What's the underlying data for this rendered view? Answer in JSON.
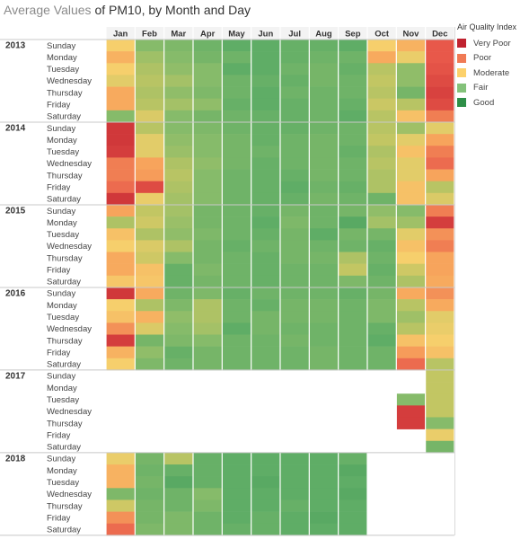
{
  "title": {
    "prefix": "Average Values",
    "suffix": " of PM10, by Month and Day"
  },
  "legend": {
    "title": "Air Quality Index",
    "items": [
      {
        "label": "Very Poor",
        "color": "#c0222f"
      },
      {
        "label": "Poor",
        "color": "#f07a55"
      },
      {
        "label": "Moderate",
        "color": "#fcd16b"
      },
      {
        "label": "Fair",
        "color": "#84c27a"
      },
      {
        "label": "Good",
        "color": "#2e8f48"
      }
    ]
  },
  "chart_data": {
    "type": "heatmap",
    "title": "Average Values of PM10, by Month and Day",
    "columns": [
      "Jan",
      "Feb",
      "Mar",
      "Apr",
      "May",
      "Jun",
      "Jul",
      "Aug",
      "Sep",
      "Oct",
      "Nov",
      "Dec"
    ],
    "row_labels": [
      "Sunday",
      "Monday",
      "Tuesday",
      "Wednesday",
      "Thursday",
      "Friday",
      "Saturday"
    ],
    "color_scale": {
      "categories": [
        "Very Poor",
        "Poor",
        "Moderate",
        "Fair",
        "Good"
      ],
      "stops": [
        [
          0,
          "#c0222f"
        ],
        [
          0.2,
          "#e8584a"
        ],
        [
          0.4,
          "#f7a45c"
        ],
        [
          0.55,
          "#f6cf6c"
        ],
        [
          0.68,
          "#c2c663"
        ],
        [
          0.8,
          "#86bb6a"
        ],
        [
          0.9,
          "#5fad66"
        ],
        [
          1,
          "#3f9a58"
        ]
      ]
    },
    "cell_value": "Air Quality Index level, 0 = Very Poor … 1 = Good",
    "groups": [
      {
        "year": "2013",
        "rows": [
          [
            0.55,
            0.8,
            0.82,
            0.86,
            0.9,
            0.9,
            0.88,
            0.88,
            0.9,
            0.55,
            0.45,
            0.2
          ],
          [
            0.45,
            0.75,
            0.8,
            0.84,
            0.86,
            0.9,
            0.88,
            0.86,
            0.86,
            0.42,
            0.58,
            0.2
          ],
          [
            0.55,
            0.72,
            0.78,
            0.8,
            0.9,
            0.9,
            0.86,
            0.84,
            0.88,
            0.7,
            0.78,
            0.18
          ],
          [
            0.6,
            0.7,
            0.74,
            0.8,
            0.86,
            0.88,
            0.88,
            0.84,
            0.86,
            0.68,
            0.78,
            0.15
          ],
          [
            0.42,
            0.72,
            0.78,
            0.82,
            0.86,
            0.9,
            0.86,
            0.86,
            0.86,
            0.7,
            0.84,
            0.12
          ],
          [
            0.42,
            0.7,
            0.74,
            0.78,
            0.88,
            0.9,
            0.88,
            0.86,
            0.88,
            0.66,
            0.7,
            0.15
          ],
          [
            0.8,
            0.62,
            0.8,
            0.84,
            0.86,
            0.88,
            0.88,
            0.86,
            0.9,
            0.7,
            0.5,
            0.3
          ]
        ]
      },
      {
        "year": "2014",
        "rows": [
          [
            0.08,
            0.7,
            0.8,
            0.82,
            0.86,
            0.88,
            0.88,
            0.86,
            0.86,
            0.7,
            0.75,
            0.6
          ],
          [
            0.08,
            0.6,
            0.78,
            0.8,
            0.84,
            0.88,
            0.86,
            0.84,
            0.86,
            0.68,
            0.6,
            0.4
          ],
          [
            0.1,
            0.6,
            0.76,
            0.8,
            0.84,
            0.86,
            0.86,
            0.84,
            0.88,
            0.72,
            0.5,
            0.3
          ],
          [
            0.3,
            0.4,
            0.72,
            0.78,
            0.84,
            0.88,
            0.86,
            0.84,
            0.86,
            0.7,
            0.6,
            0.25
          ],
          [
            0.3,
            0.38,
            0.7,
            0.8,
            0.86,
            0.88,
            0.88,
            0.84,
            0.86,
            0.72,
            0.6,
            0.4
          ],
          [
            0.25,
            0.15,
            0.72,
            0.8,
            0.86,
            0.88,
            0.9,
            0.86,
            0.88,
            0.72,
            0.5,
            0.7
          ],
          [
            0.08,
            0.58,
            0.74,
            0.8,
            0.86,
            0.88,
            0.88,
            0.84,
            0.86,
            0.86,
            0.5,
            0.62
          ]
        ]
      },
      {
        "year": "2015",
        "rows": [
          [
            0.4,
            0.68,
            0.74,
            0.84,
            0.86,
            0.88,
            0.84,
            0.86,
            0.84,
            0.78,
            0.8,
            0.3
          ],
          [
            0.72,
            0.65,
            0.76,
            0.84,
            0.86,
            0.9,
            0.82,
            0.86,
            0.92,
            0.74,
            0.75,
            0.1
          ],
          [
            0.5,
            0.72,
            0.78,
            0.82,
            0.86,
            0.88,
            0.84,
            0.9,
            0.84,
            0.84,
            0.6,
            0.35
          ],
          [
            0.55,
            0.62,
            0.72,
            0.84,
            0.88,
            0.86,
            0.84,
            0.86,
            0.86,
            0.88,
            0.5,
            0.3
          ],
          [
            0.42,
            0.65,
            0.8,
            0.84,
            0.86,
            0.88,
            0.84,
            0.84,
            0.72,
            0.86,
            0.55,
            0.4
          ],
          [
            0.42,
            0.5,
            0.88,
            0.82,
            0.86,
            0.88,
            0.86,
            0.86,
            0.68,
            0.88,
            0.65,
            0.4
          ],
          [
            0.52,
            0.52,
            0.88,
            0.84,
            0.86,
            0.88,
            0.86,
            0.86,
            0.82,
            0.86,
            0.72,
            0.42
          ]
        ]
      },
      {
        "year": "2016",
        "rows": [
          [
            0.08,
            0.42,
            0.86,
            0.82,
            0.88,
            0.86,
            0.86,
            0.86,
            0.88,
            0.84,
            0.42,
            0.35
          ],
          [
            0.55,
            0.72,
            0.82,
            0.72,
            0.86,
            0.88,
            0.84,
            0.84,
            0.86,
            0.82,
            0.7,
            0.42
          ],
          [
            0.5,
            0.45,
            0.78,
            0.72,
            0.86,
            0.84,
            0.84,
            0.84,
            0.86,
            0.82,
            0.75,
            0.6
          ],
          [
            0.35,
            0.62,
            0.8,
            0.74,
            0.9,
            0.84,
            0.86,
            0.86,
            0.86,
            0.88,
            0.7,
            0.58
          ],
          [
            0.1,
            0.84,
            0.82,
            0.8,
            0.86,
            0.86,
            0.84,
            0.86,
            0.86,
            0.9,
            0.5,
            0.55
          ],
          [
            0.45,
            0.78,
            0.88,
            0.84,
            0.86,
            0.86,
            0.86,
            0.84,
            0.86,
            0.86,
            0.38,
            0.5
          ],
          [
            0.55,
            0.82,
            0.86,
            0.84,
            0.86,
            0.86,
            0.86,
            0.84,
            0.86,
            0.86,
            0.25,
            0.7
          ]
        ]
      },
      {
        "year": "2017",
        "rows": [
          [
            null,
            null,
            null,
            null,
            null,
            null,
            null,
            null,
            null,
            null,
            null,
            0.68
          ],
          [
            null,
            null,
            null,
            null,
            null,
            null,
            null,
            null,
            null,
            null,
            null,
            0.68
          ],
          [
            null,
            null,
            null,
            null,
            null,
            null,
            null,
            null,
            null,
            null,
            0.8,
            0.68
          ],
          [
            null,
            null,
            null,
            null,
            null,
            null,
            null,
            null,
            null,
            null,
            0.1,
            0.68
          ],
          [
            null,
            null,
            null,
            null,
            null,
            null,
            null,
            null,
            null,
            null,
            0.1,
            0.8
          ],
          [
            null,
            null,
            null,
            null,
            null,
            null,
            null,
            null,
            null,
            null,
            null,
            0.58
          ],
          [
            null,
            null,
            null,
            null,
            null,
            null,
            null,
            null,
            null,
            null,
            null,
            0.84
          ]
        ]
      },
      {
        "year": "2018",
        "rows": [
          [
            0.58,
            0.84,
            0.7,
            0.88,
            0.9,
            0.9,
            0.9,
            0.9,
            0.88,
            null,
            null,
            null
          ],
          [
            0.45,
            0.86,
            0.88,
            0.88,
            0.9,
            0.9,
            0.9,
            0.9,
            0.92,
            null,
            null,
            null
          ],
          [
            0.45,
            0.84,
            0.92,
            0.88,
            0.9,
            0.92,
            0.9,
            0.9,
            0.9,
            null,
            null,
            null
          ],
          [
            0.82,
            0.86,
            0.86,
            0.8,
            0.9,
            0.9,
            0.9,
            0.9,
            0.92,
            null,
            null,
            null
          ],
          [
            0.65,
            0.84,
            0.86,
            0.82,
            0.9,
            0.9,
            0.88,
            0.9,
            0.9,
            null,
            null,
            null
          ],
          [
            0.35,
            0.84,
            0.82,
            0.86,
            0.9,
            0.88,
            0.9,
            0.92,
            0.9,
            null,
            null,
            null
          ],
          [
            0.25,
            0.82,
            0.82,
            0.86,
            0.88,
            0.88,
            0.9,
            0.9,
            0.9,
            null,
            null,
            null
          ]
        ]
      }
    ]
  }
}
